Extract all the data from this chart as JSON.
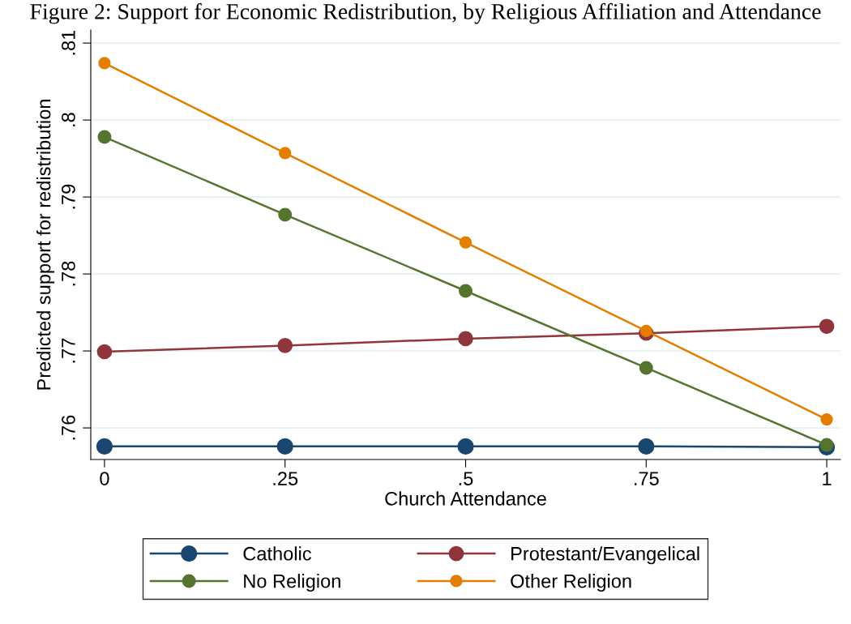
{
  "chart_data": {
    "type": "line",
    "title": "Figure 2: Support for Economic Redistribution, by Religious Affiliation and Attendance",
    "xlabel": "Church Attendance",
    "ylabel": "Predicted support for redistribution",
    "x": [
      0,
      0.25,
      0.5,
      0.75,
      1
    ],
    "series": [
      {
        "name": "Catholic",
        "color": "#1a476f",
        "values": [
          0.7576,
          0.7576,
          0.7576,
          0.7576,
          0.7575
        ]
      },
      {
        "name": "Protestant/Evangelical",
        "color": "#90353b",
        "values": [
          0.7699,
          0.7707,
          0.7716,
          0.7723,
          0.7732
        ]
      },
      {
        "name": "No Religion",
        "color": "#55752f",
        "values": [
          0.7978,
          0.7877,
          0.7778,
          0.7678,
          0.7578
        ]
      },
      {
        "name": "Other Religion",
        "color": "#e37e00",
        "values": [
          0.8074,
          0.7957,
          0.7841,
          0.7726,
          0.7611
        ]
      }
    ],
    "xlim": [
      -0.019,
      1.019
    ],
    "ylim": [
      0.7559,
      0.8117
    ],
    "xticks": [
      {
        "value": 0,
        "label": "0"
      },
      {
        "value": 0.25,
        "label": ".25"
      },
      {
        "value": 0.5,
        "label": ".5"
      },
      {
        "value": 0.75,
        "label": ".75"
      },
      {
        "value": 1,
        "label": "1"
      }
    ],
    "yticks": [
      {
        "value": 0.76,
        "label": ".76"
      },
      {
        "value": 0.77,
        "label": ".77"
      },
      {
        "value": 0.78,
        "label": ".78"
      },
      {
        "value": 0.79,
        "label": ".79"
      },
      {
        "value": 0.8,
        "label": ".8"
      },
      {
        "value": 0.81,
        "label": ".81"
      }
    ],
    "grid": "y",
    "legend": "bottom",
    "marker": "circle",
    "line_style": "solid"
  }
}
